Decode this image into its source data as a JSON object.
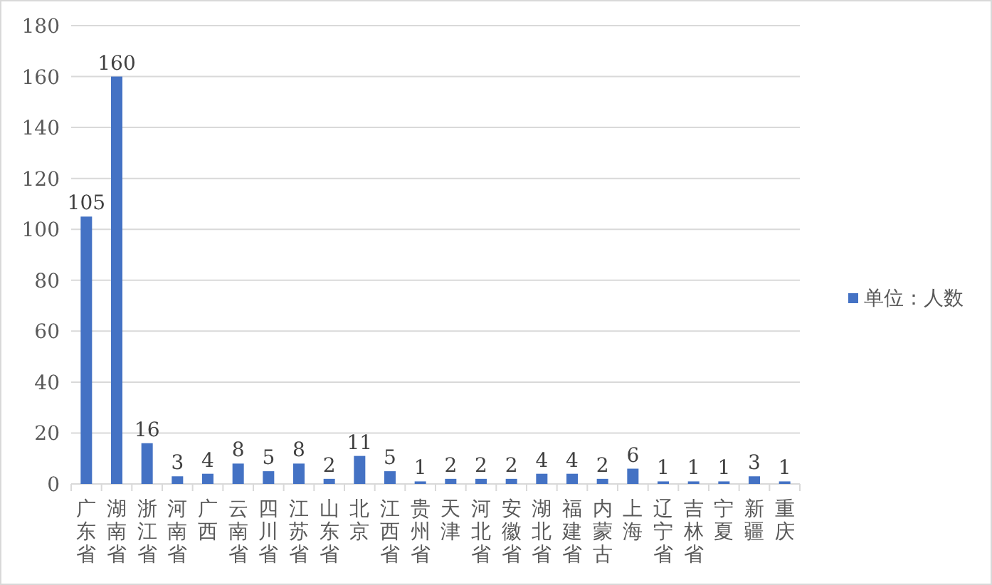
{
  "chart_data": {
    "type": "bar",
    "categories": [
      "广东省",
      "湖南省",
      "浙江省",
      "河南省",
      "广西",
      "云南省",
      "四川省",
      "江苏省",
      "山东省",
      "北京",
      "江西省",
      "贵州省",
      "天津",
      "河北省",
      "安徽省",
      "湖北省",
      "福建省",
      "内蒙古",
      "上海",
      "辽宁省",
      "吉林省",
      "宁夏",
      "新疆",
      "重庆"
    ],
    "series": [
      {
        "name": "单位：人数",
        "color": "#4472c4",
        "values": [
          105,
          160,
          16,
          3,
          4,
          8,
          5,
          8,
          2,
          11,
          5,
          1,
          2,
          2,
          2,
          4,
          4,
          2,
          6,
          1,
          1,
          1,
          3,
          1
        ]
      }
    ],
    "ylim": [
      0,
      180
    ],
    "yticks": [
      0,
      20,
      40,
      60,
      80,
      100,
      120,
      140,
      160,
      180
    ],
    "grid": "y",
    "legend": "right",
    "data_labels": true
  }
}
